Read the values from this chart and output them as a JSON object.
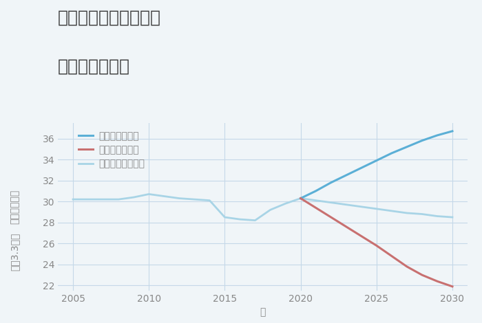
{
  "title_line1": "愛知県碧南市舟江町の",
  "title_line2": "土地の価格推移",
  "xlabel": "年",
  "ylabel_top": "単価（万円）",
  "ylabel_bottom": "坪（3.3㎡）",
  "background_color": "#f0f5f8",
  "plot_bg_color": "#f0f5f8",
  "grid_color": "#c5d8e8",
  "historical_years": [
    2005,
    2006,
    2007,
    2008,
    2009,
    2010,
    2011,
    2012,
    2013,
    2014,
    2015,
    2016,
    2017,
    2018,
    2019,
    2020
  ],
  "historical_values": [
    30.2,
    30.2,
    30.2,
    30.2,
    30.4,
    30.7,
    30.5,
    30.3,
    30.2,
    30.1,
    28.5,
    28.3,
    28.2,
    29.2,
    29.8,
    30.3
  ],
  "future_years": [
    2020,
    2021,
    2022,
    2023,
    2024,
    2025,
    2026,
    2027,
    2028,
    2029,
    2030
  ],
  "good_values": [
    30.3,
    31.0,
    31.8,
    32.5,
    33.2,
    33.9,
    34.6,
    35.2,
    35.8,
    36.3,
    36.7
  ],
  "bad_values": [
    30.3,
    29.4,
    28.5,
    27.6,
    26.7,
    25.8,
    24.8,
    23.8,
    23.0,
    22.4,
    21.9
  ],
  "normal_values": [
    30.3,
    30.1,
    29.9,
    29.7,
    29.5,
    29.3,
    29.1,
    28.9,
    28.8,
    28.6,
    28.5
  ],
  "good_color": "#5bafd6",
  "bad_color": "#c87070",
  "normal_color": "#a8d4e6",
  "hist_color": "#a8d4e6",
  "ylim": [
    21.5,
    37.5
  ],
  "yticks": [
    22,
    24,
    26,
    28,
    30,
    32,
    34,
    36
  ],
  "xlim": [
    2004,
    2031
  ],
  "xticks": [
    2005,
    2010,
    2015,
    2020,
    2025,
    2030
  ],
  "legend_labels": [
    "グッドシナリオ",
    "バッドシナリオ",
    "ノーマルシナリオ"
  ],
  "title_color": "#3a3a3a",
  "tick_color": "#888888",
  "label_color": "#888888",
  "title_fontsize": 18,
  "tick_fontsize": 10,
  "axis_label_fontsize": 10
}
